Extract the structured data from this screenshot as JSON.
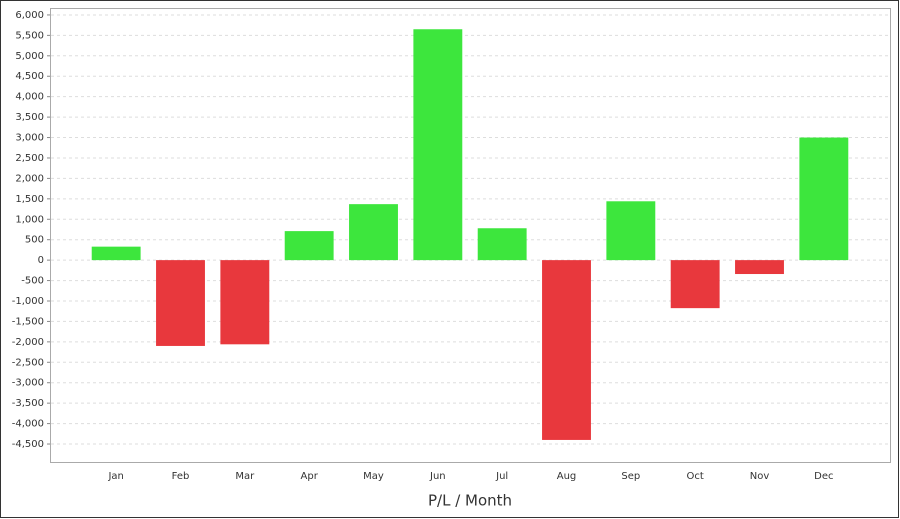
{
  "chart_data": {
    "type": "bar",
    "x_label": "P/L / Month",
    "categories": [
      "Jan",
      "Feb",
      "Mar",
      "Apr",
      "May",
      "Jun",
      "Jul",
      "Aug",
      "Sep",
      "Oct",
      "Nov",
      "Dec"
    ],
    "values": [
      330,
      -2100,
      -2060,
      710,
      1370,
      5650,
      780,
      -4400,
      1440,
      -1175,
      -340,
      3000
    ],
    "positive_color": "#3de63d",
    "negative_color": "#e8383d",
    "ylim": [
      -4940,
      6170
    ],
    "yticks": [
      {
        "value": 6000,
        "label": "6,000"
      },
      {
        "value": 5500,
        "label": "5,500"
      },
      {
        "value": 5000,
        "label": "5,000"
      },
      {
        "value": 4500,
        "label": "4,500"
      },
      {
        "value": 4000,
        "label": "4,000"
      },
      {
        "value": 3500,
        "label": "3,500"
      },
      {
        "value": 3000,
        "label": "3,000"
      },
      {
        "value": 2500,
        "label": "2,500"
      },
      {
        "value": 2000,
        "label": "2,000"
      },
      {
        "value": 1500,
        "label": "1,500"
      },
      {
        "value": 1000,
        "label": "1,000"
      },
      500,
      0,
      -500,
      {
        "value": -1000,
        "label": "-1,000"
      },
      {
        "value": -1500,
        "label": "-1,500"
      },
      {
        "value": -2000,
        "label": "-2,000"
      },
      {
        "value": -2500,
        "label": "-2,500"
      },
      {
        "value": -3000,
        "label": "-3,000"
      },
      {
        "value": -3500,
        "label": "-3,500"
      },
      {
        "value": -4000,
        "label": "-4,000"
      },
      {
        "value": -4500,
        "label": "-4,500"
      }
    ],
    "grid": true
  }
}
